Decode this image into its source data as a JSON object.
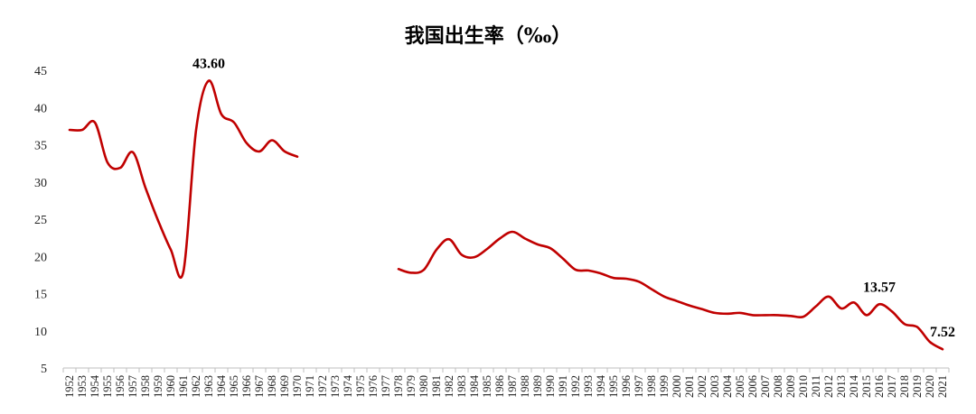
{
  "chart_data": {
    "type": "line",
    "title": "我国出生率（‰）",
    "xlabel": "",
    "ylabel": "",
    "ylim": [
      5,
      45
    ],
    "yticks": [
      5,
      10,
      15,
      20,
      25,
      30,
      35,
      40,
      45
    ],
    "grid": false,
    "legend": "none",
    "line_color": "#c00000",
    "x": [
      "1952",
      "1953",
      "1954",
      "1955",
      "1956",
      "1957",
      "1958",
      "1959",
      "1960",
      "1961",
      "1962",
      "1963",
      "1964",
      "1965",
      "1966",
      "1967",
      "1968",
      "1969",
      "1970",
      "1971",
      "1972",
      "1973",
      "1974",
      "1975",
      "1976",
      "1977",
      "1978",
      "1979",
      "1980",
      "1981",
      "1982",
      "1983",
      "1984",
      "1985",
      "1986",
      "1987",
      "1988",
      "1989",
      "1990",
      "1991",
      "1992",
      "1993",
      "1994",
      "1995",
      "1996",
      "1997",
      "1998",
      "1999",
      "2000",
      "2001",
      "2002",
      "2003",
      "2004",
      "2005",
      "2006",
      "2007",
      "2008",
      "2009",
      "2010",
      "2011",
      "2012",
      "2013",
      "2014",
      "2015",
      "2016",
      "2017",
      "2018",
      "2019",
      "2020",
      "2021"
    ],
    "series": [
      {
        "name": "",
        "values": [
          37.0,
          37.0,
          38.0,
          32.6,
          31.9,
          34.0,
          29.2,
          24.8,
          20.9,
          18.0,
          37.0,
          43.6,
          39.1,
          38.0,
          35.2,
          34.1,
          35.6,
          34.1,
          33.4,
          null,
          null,
          null,
          null,
          null,
          null,
          null,
          18.3,
          17.8,
          18.2,
          20.9,
          22.3,
          20.2,
          19.9,
          21.0,
          22.4,
          23.3,
          22.4,
          21.6,
          21.1,
          19.7,
          18.2,
          18.1,
          17.7,
          17.1,
          17.0,
          16.6,
          15.6,
          14.6,
          14.0,
          13.4,
          12.9,
          12.4,
          12.3,
          12.4,
          12.1,
          12.1,
          12.1,
          12.0,
          11.9,
          13.3,
          14.6,
          13.0,
          13.8,
          12.1,
          13.57,
          12.6,
          10.9,
          10.5,
          8.5,
          7.52
        ]
      }
    ],
    "annotations": [
      {
        "x": "1963",
        "y": 43.6,
        "text": "43.60"
      },
      {
        "x": "2016",
        "y": 13.57,
        "text": "13.57"
      },
      {
        "x": "2021",
        "y": 7.52,
        "text": "7.52"
      }
    ]
  }
}
